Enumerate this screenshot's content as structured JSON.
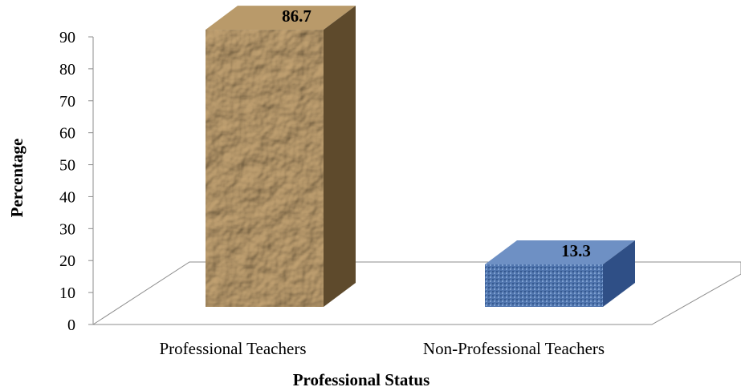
{
  "chart_data": {
    "type": "bar",
    "title": "",
    "xlabel": "Professional Status",
    "ylabel": "Percentage",
    "ylim": [
      0,
      90
    ],
    "yticks": [
      0,
      10,
      20,
      30,
      40,
      50,
      60,
      70,
      80,
      90
    ],
    "categories": [
      "Professional Teachers",
      "Non-Professional Teachers"
    ],
    "values": [
      86.7,
      13.3
    ],
    "data_labels": [
      "86.7",
      "13.3"
    ],
    "bar_colors": [
      "#a88a5c",
      "#5b7fb5"
    ],
    "grid": false,
    "legend": "none",
    "style": "3d-column"
  }
}
